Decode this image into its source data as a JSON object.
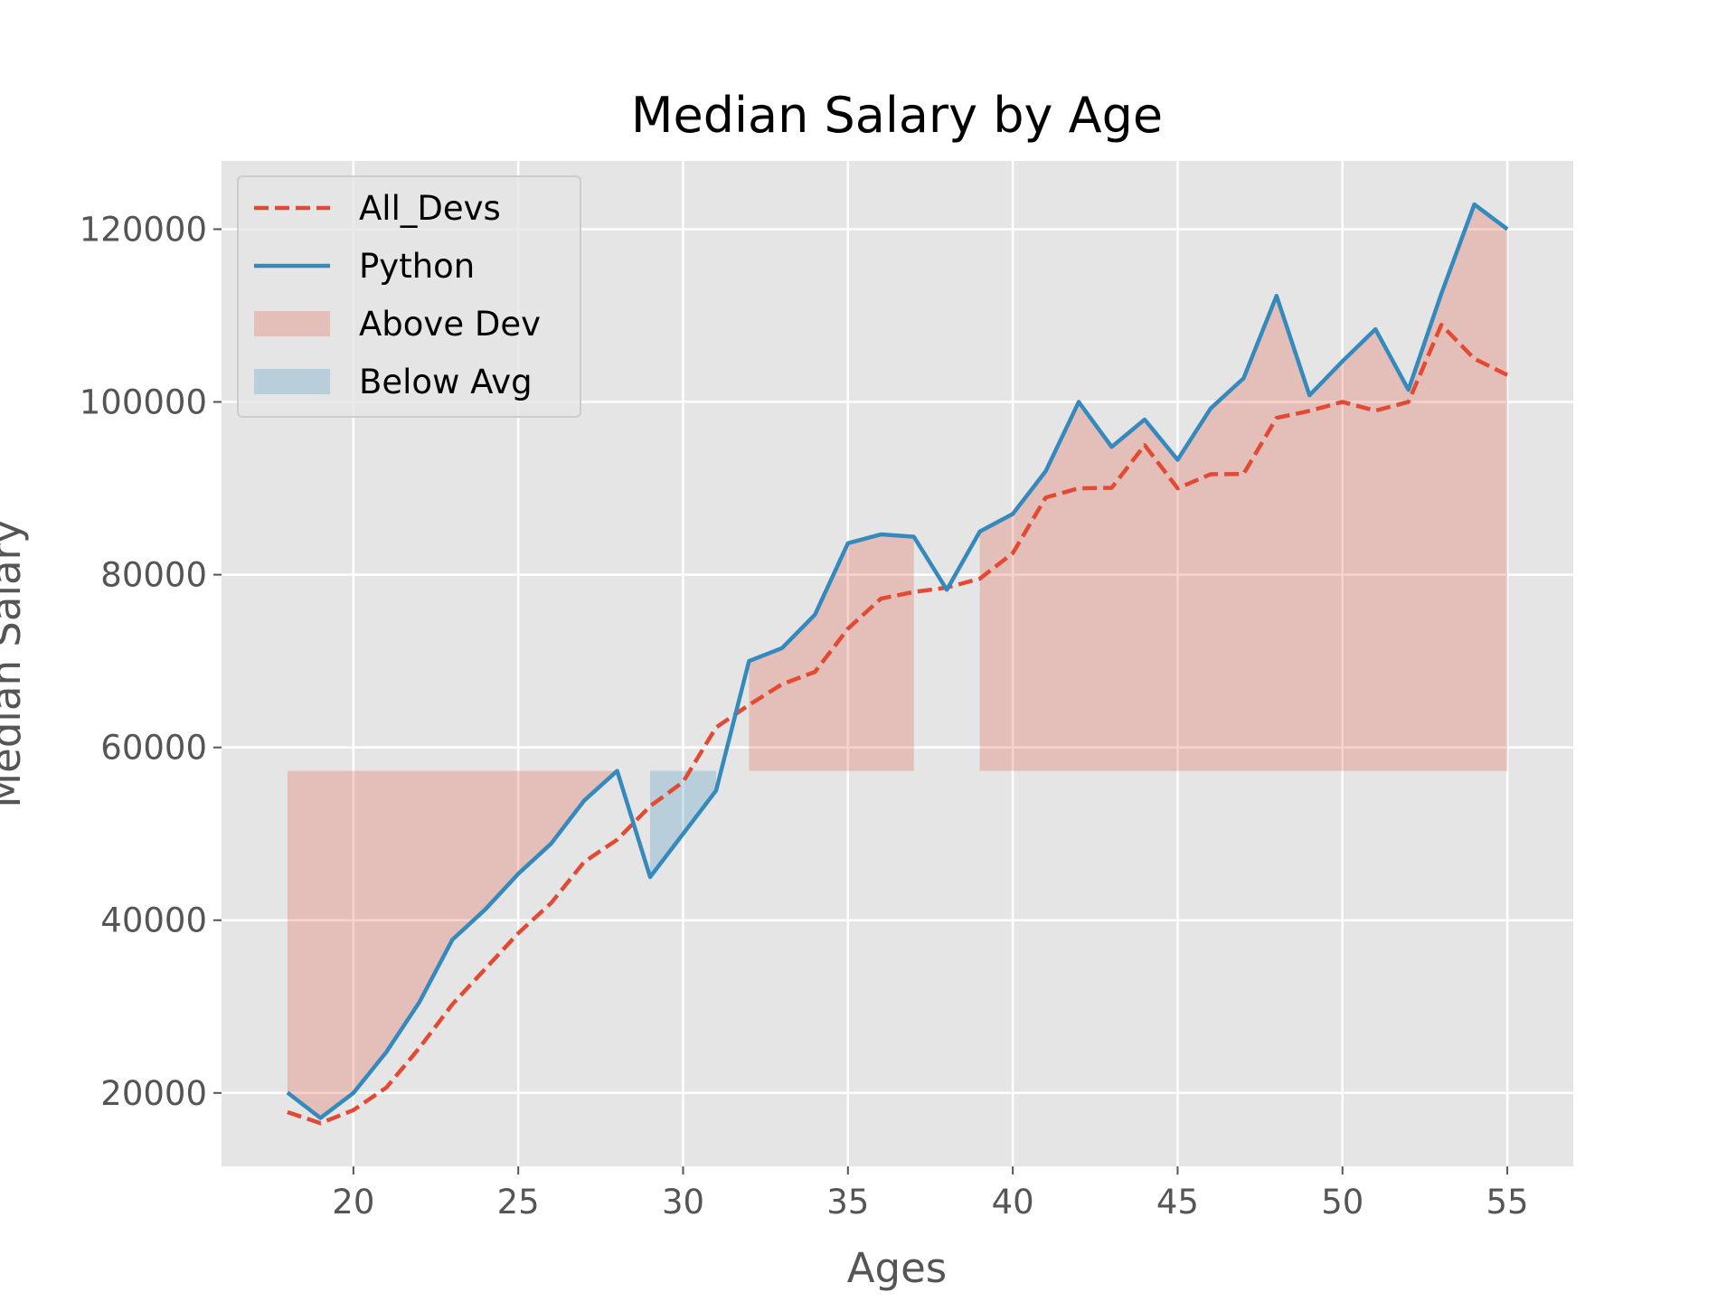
{
  "chart_data": {
    "type": "line",
    "title": "Median Salary by Age",
    "xlabel": "Ages",
    "ylabel": "Median Salary",
    "xlim": [
      16,
      57
    ],
    "ylim": [
      11500,
      127900
    ],
    "xticks": [
      20,
      25,
      30,
      35,
      40,
      45,
      50,
      55
    ],
    "yticks": [
      20000,
      40000,
      60000,
      80000,
      100000,
      120000
    ],
    "grid": true,
    "legend_position": "top-left",
    "x": [
      18,
      19,
      20,
      21,
      22,
      23,
      24,
      25,
      26,
      27,
      28,
      29,
      30,
      31,
      32,
      33,
      34,
      35,
      36,
      37,
      38,
      39,
      40,
      41,
      42,
      43,
      44,
      45,
      46,
      47,
      48,
      49,
      50,
      51,
      52,
      53,
      54,
      55
    ],
    "series": [
      {
        "name": "All_Devs",
        "style": "dashed",
        "color": "#E24A33",
        "values": [
          17784,
          16500,
          18012,
          20628,
          25206,
          30252,
          34368,
          38496,
          42000,
          46752,
          49320,
          53200,
          56000,
          62316,
          64928,
          67317,
          68748,
          73752,
          77232,
          78000,
          78508,
          79536,
          82488,
          88935,
          90000,
          90056,
          95000,
          90000,
          91633,
          91660,
          98150,
          98964,
          100000,
          98988,
          100000,
          108923,
          105000,
          103117
        ]
      },
      {
        "name": "Python",
        "style": "solid",
        "color": "#348ABD",
        "values": [
          20046,
          17100,
          20000,
          24744,
          30500,
          37732,
          41247,
          45372,
          48876,
          53850,
          57287,
          45000,
          50000,
          55000,
          70000,
          71496,
          75370,
          83640,
          84666,
          84392,
          78254,
          85000,
          87038,
          91991,
          100000,
          94796,
          97962,
          93302,
          99240,
          102736,
          112285,
          100771,
          104708,
          108423,
          101407,
          112542,
          122870,
          120000
        ]
      }
    ],
    "fills": [
      {
        "name": "Above Dev",
        "color": "#E24A33",
        "opacity": 0.25,
        "baseline": 57287,
        "where": "Python > All_Devs"
      },
      {
        "name": "Below Avg",
        "color": "#348ABD",
        "opacity": 0.25,
        "baseline": 57287,
        "where": "Python <= All_Devs"
      }
    ],
    "colors": {
      "background": "#E5E5E5",
      "grid": "#FFFFFF",
      "tick_text": "#555555"
    }
  }
}
